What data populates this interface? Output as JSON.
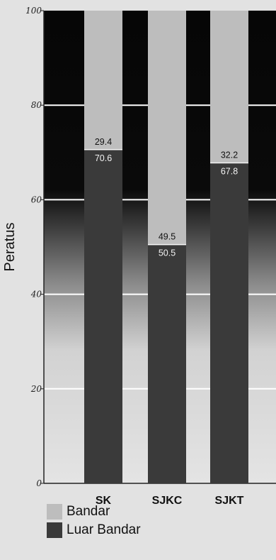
{
  "chart_data": {
    "type": "bar",
    "stacked": true,
    "title": "",
    "xlabel": "",
    "ylabel": "Peratus",
    "ylim": [
      0,
      100
    ],
    "yticks": [
      "0",
      "20",
      "40",
      "60",
      "80",
      "100"
    ],
    "categories": [
      "SK",
      "SJKC",
      "SJKT"
    ],
    "series": [
      {
        "name": "Luar Bandar",
        "values": [
          70.6,
          50.5,
          67.8
        ],
        "labels": [
          "70.6",
          "50.5",
          "67.8"
        ],
        "color": "#3a3a3a"
      },
      {
        "name": "Bandar",
        "values": [
          29.4,
          49.5,
          32.2
        ],
        "labels": [
          "29.4",
          "49.5",
          "32.2"
        ],
        "color": "#bdbdbd"
      }
    ],
    "grid": true,
    "legend_position": "bottom-left"
  },
  "legend": [
    {
      "label": "Bandar",
      "color": "#bdbdbd"
    },
    {
      "label": "Luar Bandar",
      "color": "#3a3a3a"
    }
  ]
}
